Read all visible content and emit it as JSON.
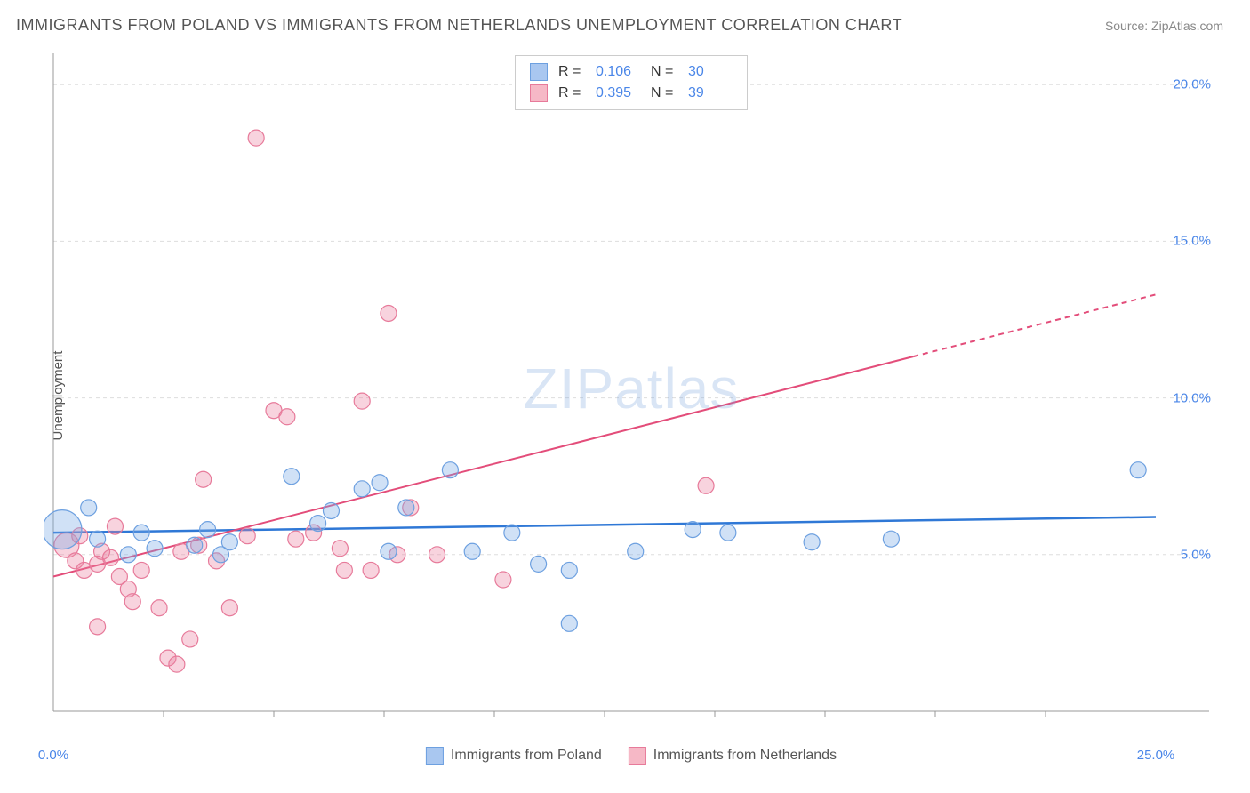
{
  "header": {
    "title": "IMMIGRANTS FROM POLAND VS IMMIGRANTS FROM NETHERLANDS UNEMPLOYMENT CORRELATION CHART",
    "source": "Source: ZipAtlas.com"
  },
  "chart": {
    "type": "scatter",
    "background_color": "#ffffff",
    "grid_color": "#dddddd",
    "axis_color": "#999999",
    "y_axis_label": "Unemployment",
    "xlim": [
      0,
      25
    ],
    "ylim": [
      0,
      21
    ],
    "x_ticks": [
      {
        "value": 0,
        "label": "0.0%"
      },
      {
        "value": 25,
        "label": "25.0%"
      }
    ],
    "y_ticks": [
      {
        "value": 5,
        "label": "5.0%"
      },
      {
        "value": 10,
        "label": "10.0%"
      },
      {
        "value": 15,
        "label": "15.0%"
      },
      {
        "value": 20,
        "label": "20.0%"
      }
    ],
    "x_minor_ticks": [
      2.5,
      5,
      7.5,
      10,
      12.5,
      15,
      17.5,
      20,
      22.5
    ],
    "watermark": {
      "zip": "ZIP",
      "atlas": "atlas"
    },
    "stats": [
      {
        "r_label": "R =",
        "r_value": "0.106",
        "n_label": "N =",
        "n_value": "30",
        "fill": "#a9c7f0",
        "stroke": "#6da0e0"
      },
      {
        "r_label": "R =",
        "r_value": "0.395",
        "n_label": "N =",
        "n_value": "39",
        "fill": "#f6b8c6",
        "stroke": "#e77a9a"
      }
    ],
    "legend": [
      {
        "label": "Immigrants from Poland",
        "fill": "#a9c7f0",
        "stroke": "#6da0e0"
      },
      {
        "label": "Immigrants from Netherlands",
        "fill": "#f6b8c6",
        "stroke": "#e77a9a"
      }
    ],
    "series": [
      {
        "name": "poland",
        "fill": "rgba(120,170,230,0.35)",
        "stroke": "#6da0e0",
        "marker_r": 9,
        "trend": {
          "x1": 0,
          "y1": 5.7,
          "x2": 25,
          "y2": 6.2,
          "color": "#2f78d6",
          "width": 2.5,
          "solid_until_x": 25
        },
        "points": [
          {
            "x": 0.2,
            "y": 5.8,
            "r": 22
          },
          {
            "x": 0.8,
            "y": 6.5,
            "r": 9
          },
          {
            "x": 1.0,
            "y": 5.5,
            "r": 9
          },
          {
            "x": 1.7,
            "y": 5.0,
            "r": 9
          },
          {
            "x": 2.0,
            "y": 5.7,
            "r": 9
          },
          {
            "x": 2.3,
            "y": 5.2,
            "r": 9
          },
          {
            "x": 3.2,
            "y": 5.3,
            "r": 9
          },
          {
            "x": 3.5,
            "y": 5.8,
            "r": 9
          },
          {
            "x": 3.8,
            "y": 5.0,
            "r": 9
          },
          {
            "x": 4.0,
            "y": 5.4,
            "r": 9
          },
          {
            "x": 5.4,
            "y": 7.5,
            "r": 9
          },
          {
            "x": 6.0,
            "y": 6.0,
            "r": 9
          },
          {
            "x": 6.3,
            "y": 6.4,
            "r": 9
          },
          {
            "x": 7.6,
            "y": 5.1,
            "r": 9
          },
          {
            "x": 7.0,
            "y": 7.1,
            "r": 9
          },
          {
            "x": 7.4,
            "y": 7.3,
            "r": 9
          },
          {
            "x": 8.0,
            "y": 6.5,
            "r": 9
          },
          {
            "x": 9.0,
            "y": 7.7,
            "r": 9
          },
          {
            "x": 9.5,
            "y": 5.1,
            "r": 9
          },
          {
            "x": 10.4,
            "y": 5.7,
            "r": 9
          },
          {
            "x": 11.0,
            "y": 4.7,
            "r": 9
          },
          {
            "x": 11.7,
            "y": 4.5,
            "r": 9
          },
          {
            "x": 11.7,
            "y": 2.8,
            "r": 9
          },
          {
            "x": 13.2,
            "y": 5.1,
            "r": 9
          },
          {
            "x": 14.5,
            "y": 5.8,
            "r": 9
          },
          {
            "x": 15.3,
            "y": 5.7,
            "r": 9
          },
          {
            "x": 17.2,
            "y": 5.4,
            "r": 9
          },
          {
            "x": 19.0,
            "y": 5.5,
            "r": 9
          },
          {
            "x": 24.6,
            "y": 7.7,
            "r": 9
          }
        ]
      },
      {
        "name": "netherlands",
        "fill": "rgba(235,130,160,0.35)",
        "stroke": "#e77a9a",
        "marker_r": 9,
        "trend": {
          "x1": 0,
          "y1": 4.3,
          "x2": 25,
          "y2": 13.3,
          "color": "#e34d7a",
          "width": 2,
          "solid_until_x": 19.5
        },
        "points": [
          {
            "x": 0.3,
            "y": 5.3,
            "r": 14
          },
          {
            "x": 0.5,
            "y": 4.8,
            "r": 9
          },
          {
            "x": 0.6,
            "y": 5.6,
            "r": 9
          },
          {
            "x": 0.7,
            "y": 4.5,
            "r": 9
          },
          {
            "x": 1.0,
            "y": 4.7,
            "r": 9
          },
          {
            "x": 1.0,
            "y": 2.7,
            "r": 9
          },
          {
            "x": 1.1,
            "y": 5.1,
            "r": 9
          },
          {
            "x": 1.3,
            "y": 4.9,
            "r": 9
          },
          {
            "x": 1.4,
            "y": 5.9,
            "r": 9
          },
          {
            "x": 1.5,
            "y": 4.3,
            "r": 9
          },
          {
            "x": 1.7,
            "y": 3.9,
            "r": 9
          },
          {
            "x": 1.8,
            "y": 3.5,
            "r": 9
          },
          {
            "x": 2.0,
            "y": 4.5,
            "r": 9
          },
          {
            "x": 2.4,
            "y": 3.3,
            "r": 9
          },
          {
            "x": 2.6,
            "y": 1.7,
            "r": 9
          },
          {
            "x": 2.8,
            "y": 1.5,
            "r": 9
          },
          {
            "x": 2.9,
            "y": 5.1,
            "r": 9
          },
          {
            "x": 3.1,
            "y": 2.3,
            "r": 9
          },
          {
            "x": 3.3,
            "y": 5.3,
            "r": 9
          },
          {
            "x": 3.4,
            "y": 7.4,
            "r": 9
          },
          {
            "x": 3.7,
            "y": 4.8,
            "r": 9
          },
          {
            "x": 4.0,
            "y": 3.3,
            "r": 9
          },
          {
            "x": 4.4,
            "y": 5.6,
            "r": 9
          },
          {
            "x": 4.6,
            "y": 18.3,
            "r": 9
          },
          {
            "x": 5.0,
            "y": 9.6,
            "r": 9
          },
          {
            "x": 5.3,
            "y": 9.4,
            "r": 9
          },
          {
            "x": 5.5,
            "y": 5.5,
            "r": 9
          },
          {
            "x": 5.9,
            "y": 5.7,
            "r": 9
          },
          {
            "x": 6.6,
            "y": 4.5,
            "r": 9
          },
          {
            "x": 6.5,
            "y": 5.2,
            "r": 9
          },
          {
            "x": 7.0,
            "y": 9.9,
            "r": 9
          },
          {
            "x": 7.2,
            "y": 4.5,
            "r": 9
          },
          {
            "x": 7.6,
            "y": 12.7,
            "r": 9
          },
          {
            "x": 7.8,
            "y": 5.0,
            "r": 9
          },
          {
            "x": 8.1,
            "y": 6.5,
            "r": 9
          },
          {
            "x": 8.7,
            "y": 5.0,
            "r": 9
          },
          {
            "x": 10.2,
            "y": 4.2,
            "r": 9
          },
          {
            "x": 14.8,
            "y": 7.2,
            "r": 9
          }
        ]
      }
    ]
  }
}
